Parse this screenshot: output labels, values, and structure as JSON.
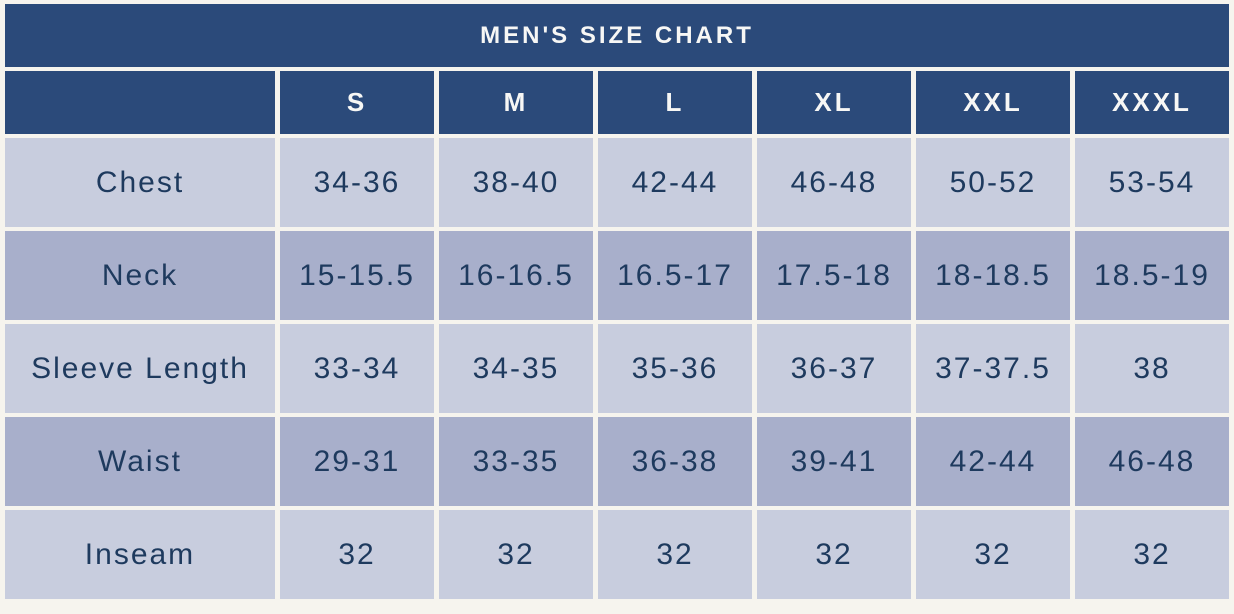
{
  "title": "MEN'S SIZE CHART",
  "chart_data": {
    "type": "table",
    "title": "MEN'S SIZE CHART",
    "columns": [
      "",
      "S",
      "M",
      "L",
      "XL",
      "XXL",
      "XXXL"
    ],
    "rows": [
      {
        "label": "Chest",
        "values": [
          "34-36",
          "38-40",
          "42-44",
          "46-48",
          "50-52",
          "53-54"
        ]
      },
      {
        "label": "Neck",
        "values": [
          "15-15.5",
          "16-16.5",
          "16.5-17",
          "17.5-18",
          "18-18.5",
          "18.5-19"
        ]
      },
      {
        "label": "Sleeve Length",
        "values": [
          "33-34",
          "34-35",
          "35-36",
          "36-37",
          "37-37.5",
          "38"
        ]
      },
      {
        "label": "Waist",
        "values": [
          "29-31",
          "33-35",
          "36-38",
          "39-41",
          "42-44",
          "46-48"
        ]
      },
      {
        "label": "Inseam",
        "values": [
          "32",
          "32",
          "32",
          "32",
          "32",
          "32"
        ]
      }
    ]
  },
  "colors": {
    "header_bg": "#2b4a7a",
    "header_text": "#f7f7f5",
    "row_light": "#c8cdde",
    "row_dark": "#a8afcb",
    "text": "#1e3a5e",
    "page_bg": "#f6f4ee"
  }
}
